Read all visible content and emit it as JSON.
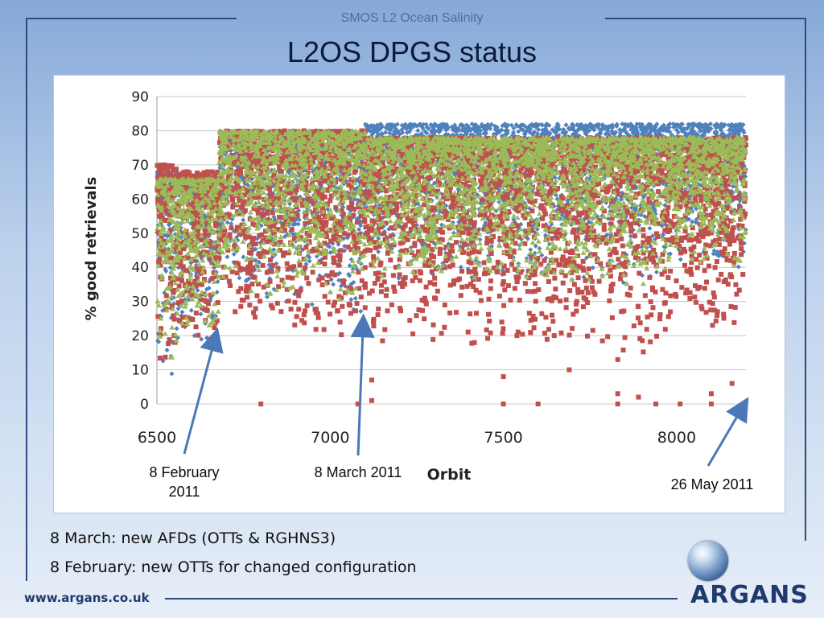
{
  "header": {
    "subtitle": "SMOS L2 Ocean Salinity",
    "title": "L2OS DPGS status"
  },
  "chart_data": {
    "type": "scatter",
    "title": "",
    "xlabel": "Orbit",
    "ylabel": "% good retrievals",
    "xlim": [
      6500,
      8200
    ],
    "ylim": [
      0,
      90
    ],
    "x_ticks": [
      6500,
      7000,
      7500,
      8000
    ],
    "y_ticks": [
      0,
      10,
      20,
      30,
      40,
      50,
      60,
      70,
      80,
      90
    ],
    "grid": "horizontal",
    "legend": "none",
    "series": [
      {
        "color": "#4f81bd",
        "marker": "diamond",
        "bands": [
          {
            "x": [
              6500,
              6560
            ],
            "y": [
              5,
              68
            ]
          },
          {
            "x": [
              6560,
              6680
            ],
            "y": [
              15,
              65
            ]
          },
          {
            "x": [
              6680,
              7100
            ],
            "y": [
              25,
              80
            ]
          },
          {
            "x": [
              7100,
              8000
            ],
            "y": [
              35,
              82
            ]
          },
          {
            "x": [
              8000,
              8200
            ],
            "y": [
              40,
              82
            ]
          }
        ]
      },
      {
        "color": "#c0504d",
        "marker": "square",
        "bands": [
          {
            "x": [
              6500,
              6560
            ],
            "y": [
              8,
              70
            ]
          },
          {
            "x": [
              6560,
              6680
            ],
            "y": [
              15,
              68
            ]
          },
          {
            "x": [
              6680,
              7100
            ],
            "y": [
              20,
              80
            ]
          },
          {
            "x": [
              7100,
              8000
            ],
            "y": [
              15,
              78
            ]
          },
          {
            "x": [
              8000,
              8200
            ],
            "y": [
              20,
              78
            ]
          }
        ],
        "outliers": [
          [
            6800,
            0
          ],
          [
            7080,
            0
          ],
          [
            7120,
            7
          ],
          [
            7120,
            1
          ],
          [
            7500,
            8
          ],
          [
            7500,
            0
          ],
          [
            7600,
            0
          ],
          [
            7690,
            10
          ],
          [
            7830,
            13
          ],
          [
            7830,
            3
          ],
          [
            7830,
            0
          ],
          [
            7890,
            2
          ],
          [
            7940,
            0
          ],
          [
            8010,
            0
          ],
          [
            8100,
            3
          ],
          [
            8100,
            0
          ],
          [
            8160,
            6
          ]
        ]
      },
      {
        "color": "#9bbb59",
        "marker": "triangle",
        "bands": [
          {
            "x": [
              6500,
              6560
            ],
            "y": [
              12,
              66
            ]
          },
          {
            "x": [
              6560,
              6680
            ],
            "y": [
              18,
              66
            ]
          },
          {
            "x": [
              6680,
              7100
            ],
            "y": [
              30,
              80
            ]
          },
          {
            "x": [
              7100,
              8000
            ],
            "y": [
              35,
              78
            ]
          },
          {
            "x": [
              8000,
              8200
            ],
            "y": [
              40,
              78
            ]
          }
        ]
      }
    ],
    "annotations": [
      {
        "text": "8 February\n2011",
        "x": 6667,
        "y": 19
      },
      {
        "text": "8 March 2011",
        "x": 7095,
        "y": 23
      },
      {
        "text": "26 May 2011",
        "x": 8190,
        "y": -1
      }
    ]
  },
  "annotation_labels": {
    "feb": [
      "8 February",
      "2011"
    ],
    "mar": "8 March 2011",
    "may": "26 May 2011"
  },
  "notes": [
    "8 March: new AFDs (OTTs & RGHNS3)",
    "8 February: new OTTs for changed configuration"
  ],
  "footer": {
    "url": "www.argans.co.uk",
    "logo": "ARGANS"
  }
}
